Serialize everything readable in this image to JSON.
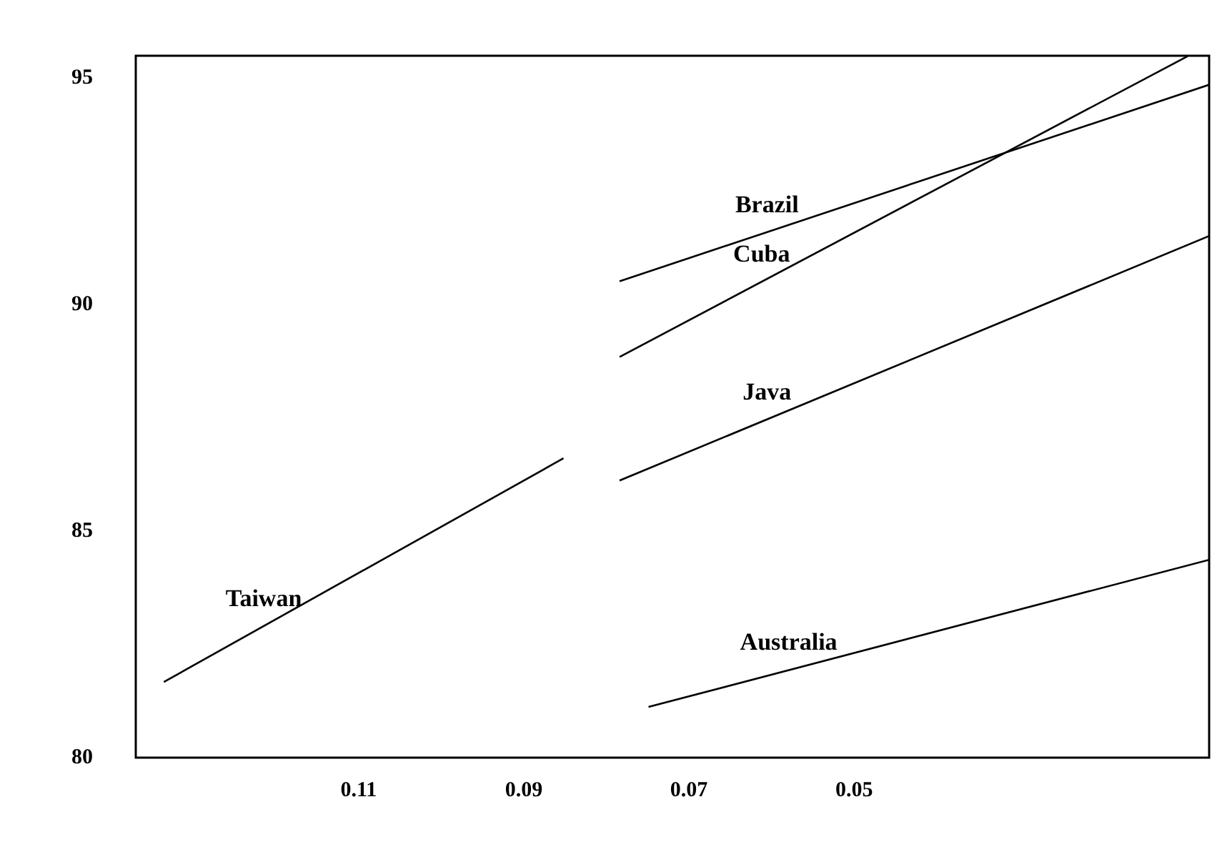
{
  "chart_data": {
    "type": "line",
    "xlim": [
      0.137,
      0.007
    ],
    "ylim": [
      80,
      95.5
    ],
    "xticks": [
      0.11,
      0.09,
      0.07,
      0.05
    ],
    "yticks": [
      80,
      85,
      90,
      95
    ],
    "grid": false,
    "legend": false,
    "marker": "none",
    "line_style": "solid",
    "series": [
      {
        "name": "Taiwan",
        "color": "#000000",
        "x": [
          0.1336,
          0.0852
        ],
        "values": [
          81.67,
          86.61
        ]
      },
      {
        "name": "Java",
        "color": "#000000",
        "x": [
          0.0784,
          0.007
        ],
        "values": [
          86.12,
          91.52
        ]
      },
      {
        "name": "Brazil",
        "color": "#000000",
        "x": [
          0.0784,
          0.007
        ],
        "values": [
          90.52,
          94.86
        ]
      },
      {
        "name": "Cuba",
        "color": "#000000",
        "x": [
          0.0784,
          0.0096
        ],
        "values": [
          88.85,
          95.49
        ]
      },
      {
        "name": "Australia",
        "color": "#000000",
        "x": [
          0.0749,
          0.007
        ],
        "values": [
          81.12,
          84.37
        ]
      }
    ]
  }
}
